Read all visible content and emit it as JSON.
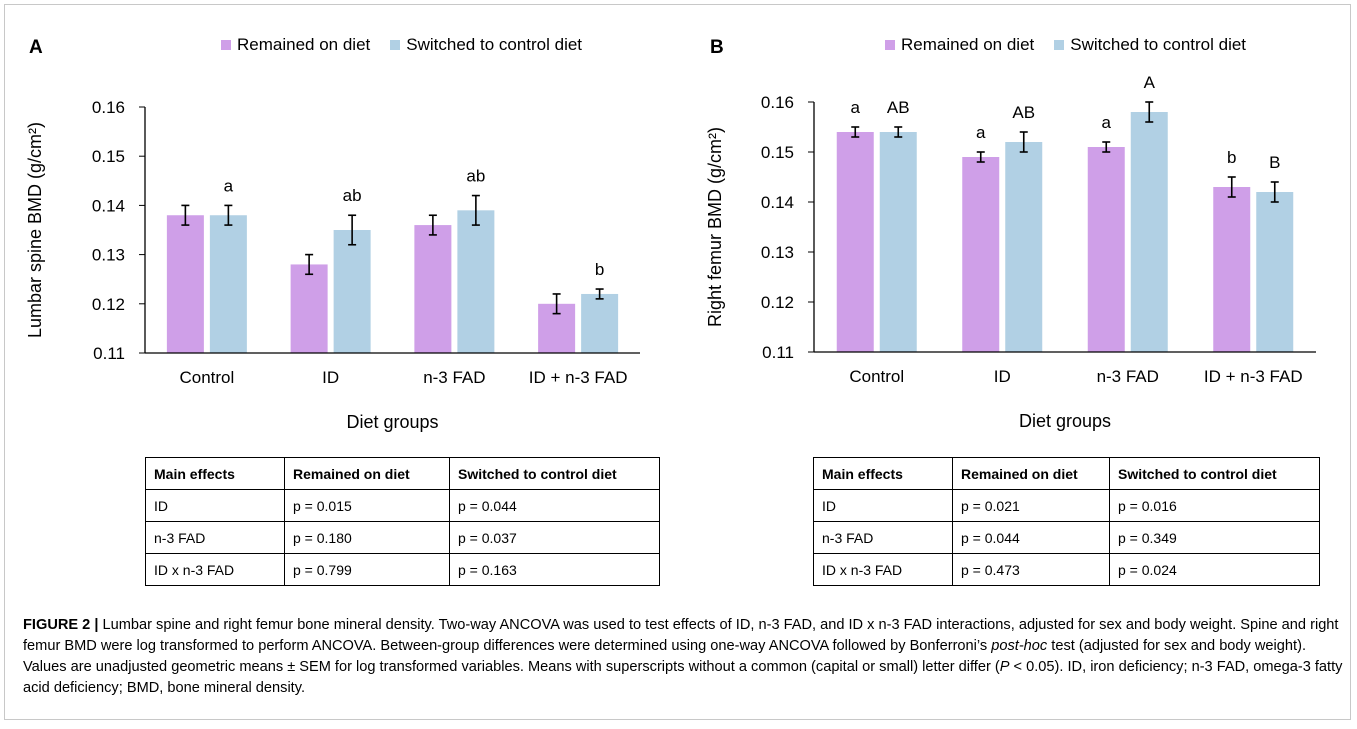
{
  "colors": {
    "remained": "#cf9fe8",
    "switched": "#b1d0e4",
    "axis": "#000000"
  },
  "chart_data": [
    {
      "panel_label": "A",
      "type": "bar",
      "xlabel": "Diet groups",
      "ylabel": "Lumbar spine BMD (g/cm²)",
      "ylim": [
        0.11,
        0.16
      ],
      "yticks": [
        "0.11",
        "0.12",
        "0.13",
        "0.14",
        "0.15",
        "0.16"
      ],
      "legend": "top",
      "categories": [
        "Control",
        "ID",
        "n-3 FAD",
        "ID + n-3 FAD"
      ],
      "series": [
        {
          "name": "Remained on diet",
          "values": [
            0.138,
            0.128,
            0.136,
            0.12
          ],
          "errors": [
            0.002,
            0.002,
            0.002,
            0.002
          ],
          "labels": [
            "",
            "",
            "",
            ""
          ]
        },
        {
          "name": "Switched to control diet",
          "values": [
            0.138,
            0.135,
            0.139,
            0.122
          ],
          "errors": [
            0.002,
            0.003,
            0.003,
            0.001
          ],
          "labels": [
            "a",
            "ab",
            "ab",
            "b"
          ]
        }
      ]
    },
    {
      "panel_label": "B",
      "type": "bar",
      "xlabel": "Diet groups",
      "ylabel": "Right femur BMD (g/cm²)",
      "ylim": [
        0.11,
        0.16
      ],
      "yticks": [
        "0.11",
        "0.12",
        "0.13",
        "0.14",
        "0.15",
        "0.16"
      ],
      "legend": "top",
      "categories": [
        "Control",
        "ID",
        "n-3 FAD",
        "ID + n-3 FAD"
      ],
      "series": [
        {
          "name": "Remained on diet",
          "values": [
            0.154,
            0.149,
            0.151,
            0.143
          ],
          "errors": [
            0.001,
            0.001,
            0.001,
            0.002
          ],
          "labels": [
            "a",
            "a",
            "a",
            "b"
          ]
        },
        {
          "name": "Switched to control diet",
          "values": [
            0.154,
            0.152,
            0.158,
            0.142
          ],
          "errors": [
            0.001,
            0.002,
            0.002,
            0.002
          ],
          "labels": [
            "AB",
            "AB",
            "A",
            "B"
          ]
        }
      ]
    }
  ],
  "tables": [
    {
      "headers": [
        "Main effects",
        "Remained on diet",
        "Switched to control diet"
      ],
      "rows": [
        [
          "ID",
          "p = 0.015",
          "p = 0.044"
        ],
        [
          "n-3 FAD",
          "p = 0.180",
          "p = 0.037"
        ],
        [
          "ID x n-3 FAD",
          "p = 0.799",
          "p = 0.163"
        ]
      ]
    },
    {
      "headers": [
        "Main effects",
        "Remained on diet",
        "Switched to control diet"
      ],
      "rows": [
        [
          "ID",
          "p = 0.021",
          "p = 0.016"
        ],
        [
          "n-3 FAD",
          "p = 0.044",
          "p = 0.349"
        ],
        [
          "ID x n-3 FAD",
          "p = 0.473",
          "p = 0.024"
        ]
      ]
    }
  ],
  "caption": {
    "label": "FIGURE 2 |",
    "part1": " Lumbar spine and right femur bone mineral density. Two-way ANCOVA was used to test effects of ID, n-3 FAD, and ID x n-3 FAD interactions, adjusted for sex and body weight. Spine and right femur BMD were log transformed to perform ANCOVA. Between-group differences were determined using one-way ANCOVA followed by Bonferroni’s ",
    "italic1": "post-hoc",
    "part2": " test (adjusted for sex and body weight). Values are unadjusted geometric means ± SEM for log transformed variables. Means with superscripts without a common (capital or small) letter differ (",
    "italic2": "P",
    "part3": " < 0.05). ID, iron deficiency; n-3 FAD, omega-3 fatty acid deficiency; BMD, bone mineral density."
  }
}
